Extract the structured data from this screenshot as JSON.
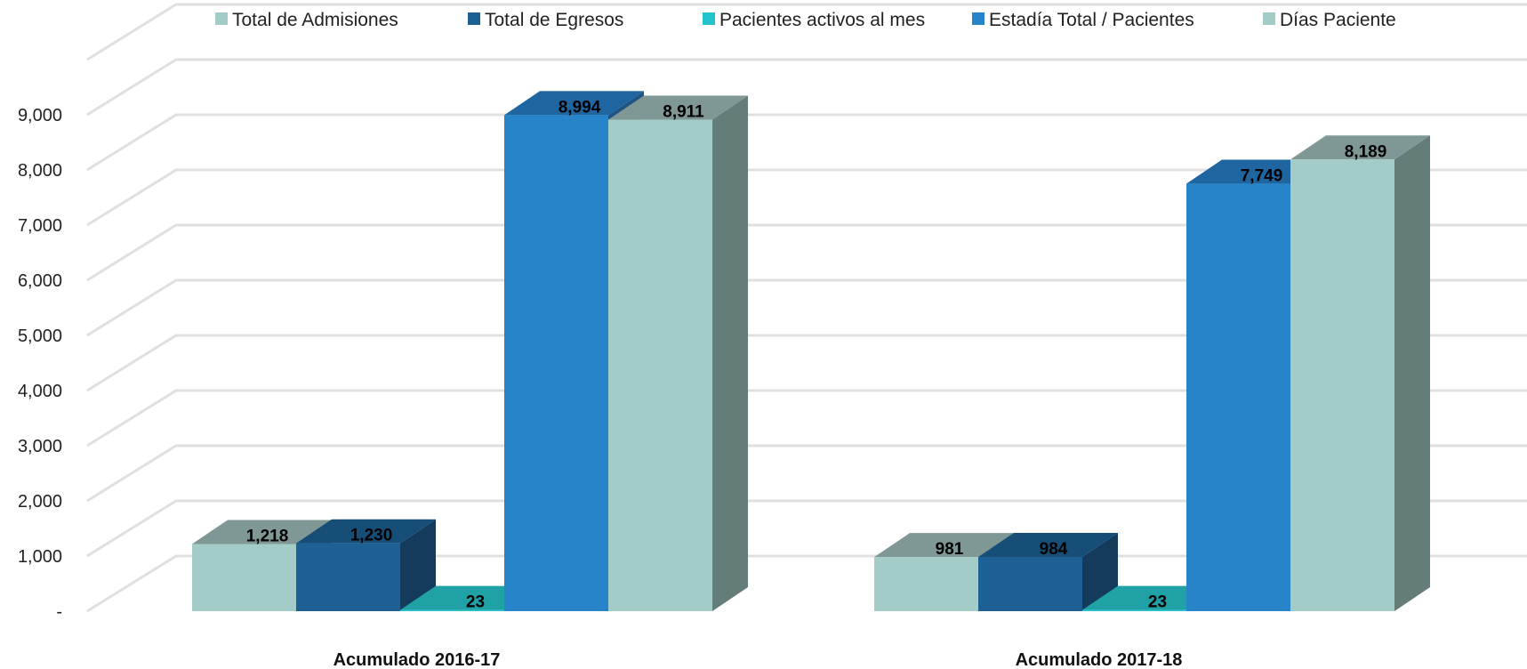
{
  "chart_data": {
    "type": "bar",
    "title": "",
    "xlabel": "",
    "ylabel": "",
    "ylim": [
      0,
      10000
    ],
    "y_ticks": [
      {
        "value": 0,
        "label": "-"
      },
      {
        "value": 1000,
        "label": "1,000"
      },
      {
        "value": 2000,
        "label": "2,000"
      },
      {
        "value": 3000,
        "label": "3,000"
      },
      {
        "value": 4000,
        "label": "4,000"
      },
      {
        "value": 5000,
        "label": "5,000"
      },
      {
        "value": 6000,
        "label": "6,000"
      },
      {
        "value": 7000,
        "label": "7,000"
      },
      {
        "value": 8000,
        "label": "8,000"
      },
      {
        "value": 9000,
        "label": "9,000"
      },
      {
        "value": 10000,
        "label": ""
      }
    ],
    "grid": true,
    "legend_position": "top",
    "categories": [
      "Acumulado 2016-17",
      "Acumulado 2017-18"
    ],
    "series": [
      {
        "name": "Total de Admisiones",
        "values": [
          1218,
          981
        ],
        "labels": [
          "1,218",
          "981"
        ],
        "color": "#a3cbc8",
        "top_color": "#7f9896",
        "side_color": "#668a85"
      },
      {
        "name": "Total de Egresos",
        "values": [
          1230,
          984
        ],
        "labels": [
          "1,230",
          "984"
        ],
        "color": "#1d6093",
        "top_color": "#174e78",
        "side_color": "#143b5c"
      },
      {
        "name": "Pacientes activos al mes",
        "values": [
          23,
          23
        ],
        "labels": [
          "23",
          "23"
        ],
        "color": "#23c4cc",
        "top_color": "#20a1a6",
        "side_color": "#1a8a8e"
      },
      {
        "name": "Estadía Total / Pacientes",
        "values": [
          8994,
          7749
        ],
        "labels": [
          "8,994",
          "7,749"
        ],
        "color": "#2884c8",
        "top_color": "#1f65a0",
        "side_color": "#1d5585"
      },
      {
        "name": "Días Paciente",
        "values": [
          8911,
          8189
        ],
        "labels": [
          "8,911",
          "8,189"
        ],
        "color": "#a3cbc8",
        "top_color": "#7f9896",
        "side_color": "#647d79"
      }
    ]
  }
}
